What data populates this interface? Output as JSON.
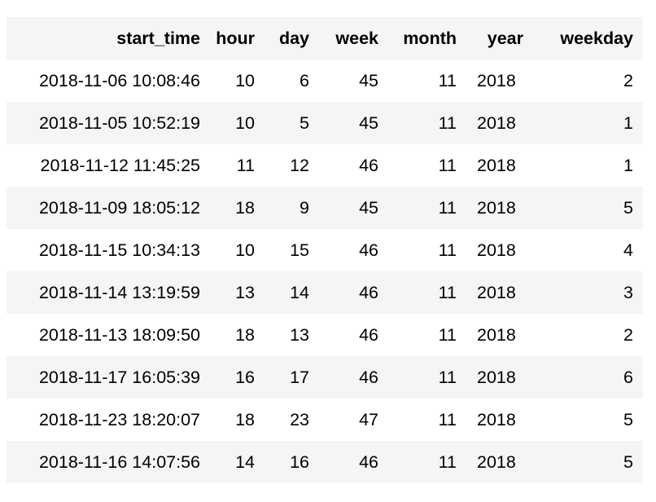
{
  "table": {
    "columns": [
      "start_time",
      "hour",
      "day",
      "week",
      "month",
      "year",
      "weekday"
    ],
    "rows": [
      [
        "2018-11-06 10:08:46",
        "10",
        "6",
        "45",
        "11",
        "2018",
        "2"
      ],
      [
        "2018-11-05 10:52:19",
        "10",
        "5",
        "45",
        "11",
        "2018",
        "1"
      ],
      [
        "2018-11-12 11:45:25",
        "11",
        "12",
        "46",
        "11",
        "2018",
        "1"
      ],
      [
        "2018-11-09 18:05:12",
        "18",
        "9",
        "45",
        "11",
        "2018",
        "5"
      ],
      [
        "2018-11-15 10:34:13",
        "10",
        "15",
        "46",
        "11",
        "2018",
        "4"
      ],
      [
        "2018-11-14 13:19:59",
        "13",
        "14",
        "46",
        "11",
        "2018",
        "3"
      ],
      [
        "2018-11-13 18:09:50",
        "18",
        "13",
        "46",
        "11",
        "2018",
        "2"
      ],
      [
        "2018-11-17 16:05:39",
        "16",
        "17",
        "46",
        "11",
        "2018",
        "6"
      ],
      [
        "2018-11-23 18:20:07",
        "18",
        "23",
        "47",
        "11",
        "2018",
        "5"
      ],
      [
        "2018-11-16 14:07:56",
        "14",
        "16",
        "46",
        "11",
        "2018",
        "5"
      ]
    ]
  }
}
